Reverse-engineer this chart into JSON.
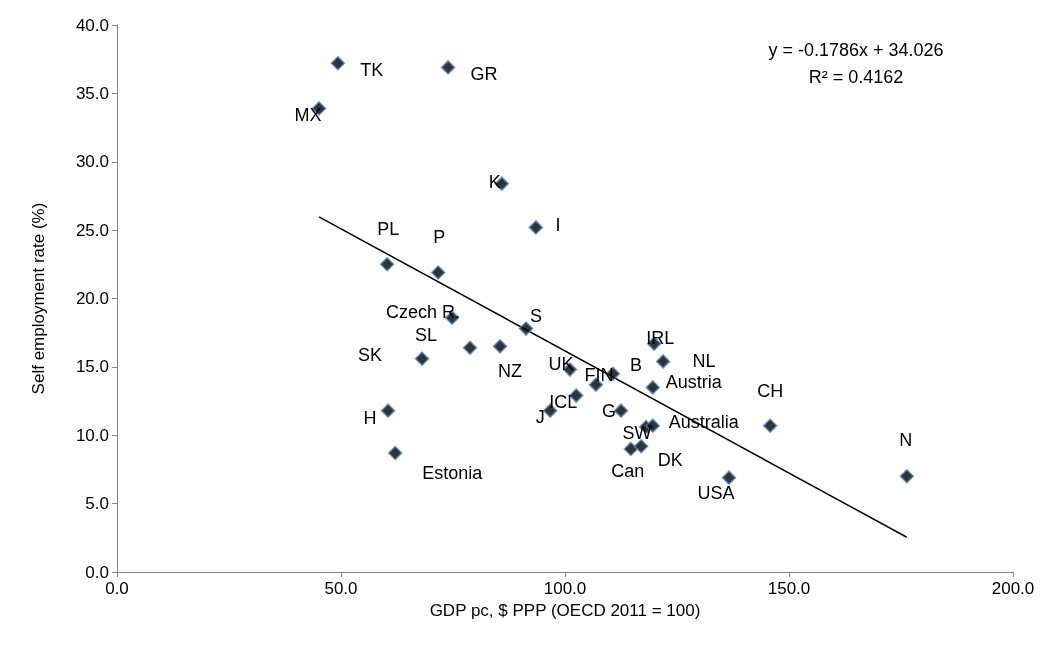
{
  "chart_data": {
    "type": "scatter",
    "xlabel": "GDP pc, $ PPP (OECD 2011 = 100)",
    "ylabel": "Self employment rate (%)",
    "xlim": [
      0,
      200
    ],
    "xticks": [
      {
        "value": 0,
        "label": "0.0"
      },
      {
        "value": 50,
        "label": "50.0"
      },
      {
        "value": 100,
        "label": "100.0"
      },
      {
        "value": 150,
        "label": "150.0"
      },
      {
        "value": 200,
        "label": "200.0"
      }
    ],
    "ylim": [
      0,
      40
    ],
    "yticks": [
      {
        "value": 0,
        "label": "0.0"
      },
      {
        "value": 5,
        "label": "5.0"
      },
      {
        "value": 10,
        "label": "10.0"
      },
      {
        "value": 15,
        "label": "15.0"
      },
      {
        "value": 20,
        "label": "20.0"
      },
      {
        "value": 25,
        "label": "25.0"
      },
      {
        "value": 30,
        "label": "30.0"
      },
      {
        "value": 35,
        "label": "35.0"
      },
      {
        "value": 40,
        "label": "40.0"
      }
    ],
    "grid": false,
    "marker": "diamond",
    "series": [
      {
        "color": "#000000",
        "x": [
          49.3,
          73.9,
          45.1,
          85.9,
          93.5,
          60.3,
          71.7,
          74.8,
          91.3,
          68.1,
          78.8,
          85.5,
          60.5,
          62.1,
          101.1,
          106.9,
          110.7,
          102.5,
          96.7,
          112.5,
          119.9,
          121.9,
          119.6,
          118.1,
          119.6,
          114.7,
          117.0,
          145.8,
          136.6,
          176.3
        ],
        "values": [
          37.2,
          36.9,
          33.9,
          28.4,
          25.2,
          22.5,
          21.9,
          18.6,
          17.8,
          15.6,
          16.4,
          16.5,
          11.8,
          8.7,
          14.8,
          13.7,
          14.5,
          12.9,
          11.8,
          11.8,
          16.7,
          15.4,
          13.5,
          10.6,
          10.7,
          9.0,
          9.2,
          10.7,
          6.9,
          7.0
        ],
        "value_labels": [
          "TK",
          "GR",
          "MX",
          "K",
          "I",
          "PL",
          "P",
          "Czech R.",
          "S",
          "SK",
          "SL",
          "NZ",
          "H",
          "Estonia",
          "UK",
          "FIN",
          "B",
          "ICL",
          "J",
          "G",
          "IRL",
          "NL",
          "Austria",
          "SW",
          "Australia",
          "Can",
          "DK",
          "CH",
          "USA",
          "N"
        ]
      },
      {
        "type": "line",
        "color": "#000000",
        "marker": "none",
        "x": [
          45.1,
          176.3
        ],
        "values": [
          25.97,
          2.54
        ]
      }
    ],
    "annotations": [
      "y = -0.1786x + 34.026",
      "R² = 0.4162"
    ]
  }
}
